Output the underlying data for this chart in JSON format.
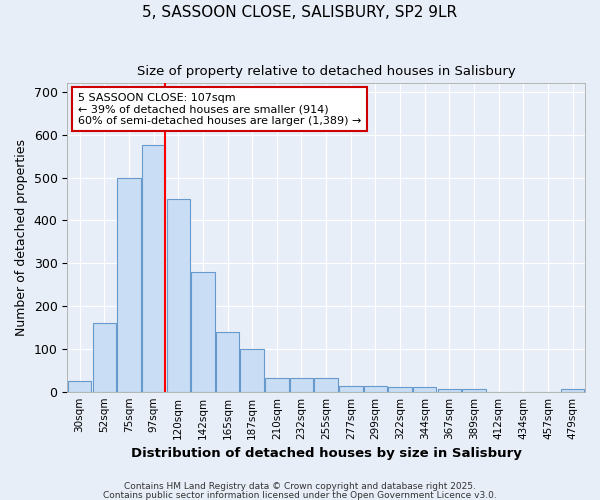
{
  "title1": "5, SASSOON CLOSE, SALISBURY, SP2 9LR",
  "title2": "Size of property relative to detached houses in Salisbury",
  "xlabel": "Distribution of detached houses by size in Salisbury",
  "ylabel": "Number of detached properties",
  "bar_labels": [
    "30sqm",
    "52sqm",
    "75sqm",
    "97sqm",
    "120sqm",
    "142sqm",
    "165sqm",
    "187sqm",
    "210sqm",
    "232sqm",
    "255sqm",
    "277sqm",
    "299sqm",
    "322sqm",
    "344sqm",
    "367sqm",
    "389sqm",
    "412sqm",
    "434sqm",
    "457sqm",
    "479sqm"
  ],
  "bar_values": [
    25,
    160,
    500,
    575,
    450,
    280,
    140,
    100,
    33,
    33,
    33,
    13,
    13,
    10,
    10,
    6,
    6,
    0,
    0,
    0,
    6
  ],
  "bar_color": "#c9ddf5",
  "bar_edge_color": "#6699cc",
  "background_color": "#e8eef8",
  "grid_color": "#ffffff",
  "red_line_index": 4,
  "annotation_text": "5 SASSOON CLOSE: 107sqm\n← 39% of detached houses are smaller (914)\n60% of semi-detached houses are larger (1,389) →",
  "annotation_box_facecolor": "#ffffff",
  "annotation_box_edgecolor": "#cc0000",
  "ylim": [
    0,
    720
  ],
  "yticks": [
    0,
    100,
    200,
    300,
    400,
    500,
    600,
    700
  ],
  "footnote1": "Contains HM Land Registry data © Crown copyright and database right 2025.",
  "footnote2": "Contains public sector information licensed under the Open Government Licence v3.0."
}
